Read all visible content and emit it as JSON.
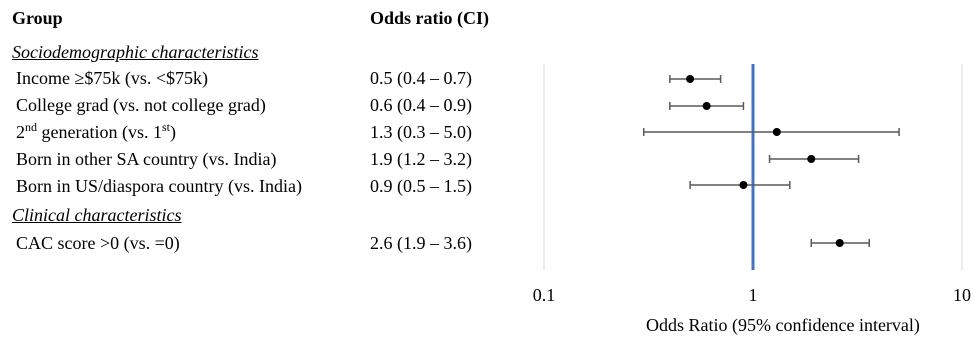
{
  "header": {
    "group_label": "Group",
    "or_label": "Odds ratio (CI)"
  },
  "sections": [
    {
      "title": "Sociodemographic characteristics"
    },
    {
      "title": "Clinical characteristics"
    }
  ],
  "rows": [
    {
      "label": "Income ≥$75k (vs. <$75k)",
      "ci_text": "0.5 (0.4 – 0.7)"
    },
    {
      "label": "College grad (vs. not college grad)",
      "ci_text": "0.6 (0.4 – 0.9)"
    },
    {
      "label_pre": "2",
      "label_sup1": "nd",
      "label_mid": " generation (vs. 1",
      "label_sup2": "st",
      "label_post": ")",
      "ci_text": "1.3 (0.3 – 5.0)"
    },
    {
      "label": "Born in other SA country (vs. India)",
      "ci_text": "1.9 (1.2 – 3.2)"
    },
    {
      "label": "Born in US/diaspora country (vs. India)",
      "ci_text": "0.9 (0.5 – 1.5)"
    },
    {
      "label": "CAC score >0 (vs. =0)",
      "ci_text": "2.6 (1.9 – 3.6)"
    }
  ],
  "colors": {
    "reference_line": "#4472c4",
    "ci_line": "#595959",
    "point": "#000000",
    "grid": "#d9d9d9"
  },
  "chart_data": {
    "type": "scatter",
    "x_scale": "log",
    "xlim": [
      0.1,
      10
    ],
    "x_ticks": [
      "0.1",
      "1",
      "10"
    ],
    "x_tick_values": [
      0.1,
      1,
      10
    ],
    "xlabel": "Odds Ratio (95% confidence interval)",
    "reference_value": 1,
    "grid": true,
    "points": [
      {
        "estimate": 0.5,
        "lower": 0.4,
        "upper": 0.7
      },
      {
        "estimate": 0.6,
        "lower": 0.4,
        "upper": 0.9
      },
      {
        "estimate": 1.3,
        "lower": 0.3,
        "upper": 5.0
      },
      {
        "estimate": 1.9,
        "lower": 1.2,
        "upper": 3.2
      },
      {
        "estimate": 0.9,
        "lower": 0.5,
        "upper": 1.5
      },
      {
        "estimate": 2.6,
        "lower": 1.9,
        "upper": 3.6
      }
    ]
  }
}
